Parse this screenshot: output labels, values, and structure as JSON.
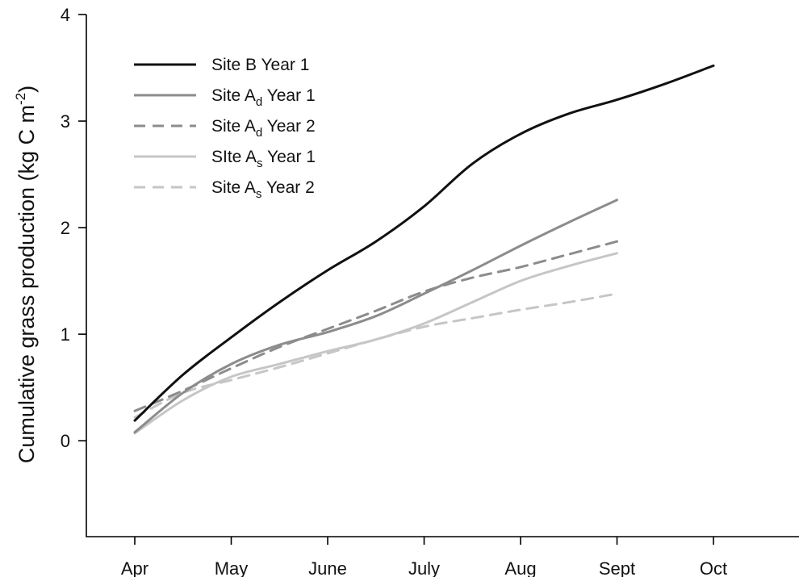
{
  "chart_data": {
    "type": "line",
    "title": "",
    "xlabel": "",
    "ylabel": "Cumulative grass production (kg C m^-2)",
    "ylabel_parts": {
      "main": "Cumulative grass production (kg C m",
      "sup": "-2",
      "close": ")"
    },
    "x_categories": [
      "Apr",
      "May",
      "June",
      "July",
      "Aug",
      "Sept",
      "Oct"
    ],
    "xlim": [
      0,
      7
    ],
    "ylim": [
      -0.9,
      4
    ],
    "yticks": [
      0,
      1,
      2,
      3,
      4
    ],
    "grid": false,
    "legend_position": "top-left",
    "series": [
      {
        "name": "Site B Year 1",
        "legend": {
          "pre": "Site B Year 1",
          "sub": "",
          "post": ""
        },
        "color": "#111111",
        "dash": "solid",
        "points": [
          [
            0,
            0.19
          ],
          [
            0.5,
            0.62
          ],
          [
            1,
            0.97
          ],
          [
            1.5,
            1.3
          ],
          [
            2,
            1.6
          ],
          [
            2.5,
            1.87
          ],
          [
            3,
            2.2
          ],
          [
            3.5,
            2.6
          ],
          [
            4,
            2.88
          ],
          [
            4.5,
            3.07
          ],
          [
            5,
            3.2
          ],
          [
            5.5,
            3.35
          ],
          [
            6,
            3.52
          ]
        ]
      },
      {
        "name": "Site Ad Year 1",
        "legend": {
          "pre": "Site A",
          "sub": "d",
          "post": " Year 1"
        },
        "color": "#8c8c8c",
        "dash": "solid",
        "points": [
          [
            0,
            0.08
          ],
          [
            0.5,
            0.45
          ],
          [
            1,
            0.72
          ],
          [
            1.5,
            0.9
          ],
          [
            2,
            1.02
          ],
          [
            2.5,
            1.17
          ],
          [
            3,
            1.38
          ],
          [
            3.5,
            1.6
          ],
          [
            4,
            1.83
          ],
          [
            4.5,
            2.05
          ],
          [
            5,
            2.26
          ]
        ]
      },
      {
        "name": "Site Ad Year 2",
        "legend": {
          "pre": "Site A",
          "sub": "d",
          "post": " Year 2"
        },
        "color": "#8c8c8c",
        "dash": "dashed",
        "points": [
          [
            0,
            0.28
          ],
          [
            0.5,
            0.47
          ],
          [
            1,
            0.68
          ],
          [
            1.5,
            0.88
          ],
          [
            2,
            1.05
          ],
          [
            2.5,
            1.22
          ],
          [
            3,
            1.4
          ],
          [
            3.5,
            1.53
          ],
          [
            4,
            1.63
          ],
          [
            4.5,
            1.75
          ],
          [
            5,
            1.87
          ]
        ]
      },
      {
        "name": "Site As Year 1",
        "legend": {
          "pre": "SIte A",
          "sub": "s",
          "post": " Year 1"
        },
        "color": "#c6c6c6",
        "dash": "solid",
        "points": [
          [
            0,
            0.07
          ],
          [
            0.5,
            0.38
          ],
          [
            1,
            0.6
          ],
          [
            1.5,
            0.72
          ],
          [
            2,
            0.84
          ],
          [
            2.5,
            0.95
          ],
          [
            3,
            1.1
          ],
          [
            3.5,
            1.3
          ],
          [
            4,
            1.5
          ],
          [
            4.5,
            1.64
          ],
          [
            5,
            1.76
          ]
        ]
      },
      {
        "name": "Site As Year 2",
        "legend": {
          "pre": "Site A",
          "sub": "s",
          "post": " Year 2"
        },
        "color": "#c6c6c6",
        "dash": "dashed",
        "points": [
          [
            0,
            0.22
          ],
          [
            0.5,
            0.45
          ],
          [
            1,
            0.57
          ],
          [
            1.5,
            0.69
          ],
          [
            2,
            0.82
          ],
          [
            2.5,
            0.95
          ],
          [
            3,
            1.07
          ],
          [
            3.5,
            1.15
          ],
          [
            4,
            1.23
          ],
          [
            4.5,
            1.3
          ],
          [
            5,
            1.38
          ]
        ]
      }
    ]
  }
}
